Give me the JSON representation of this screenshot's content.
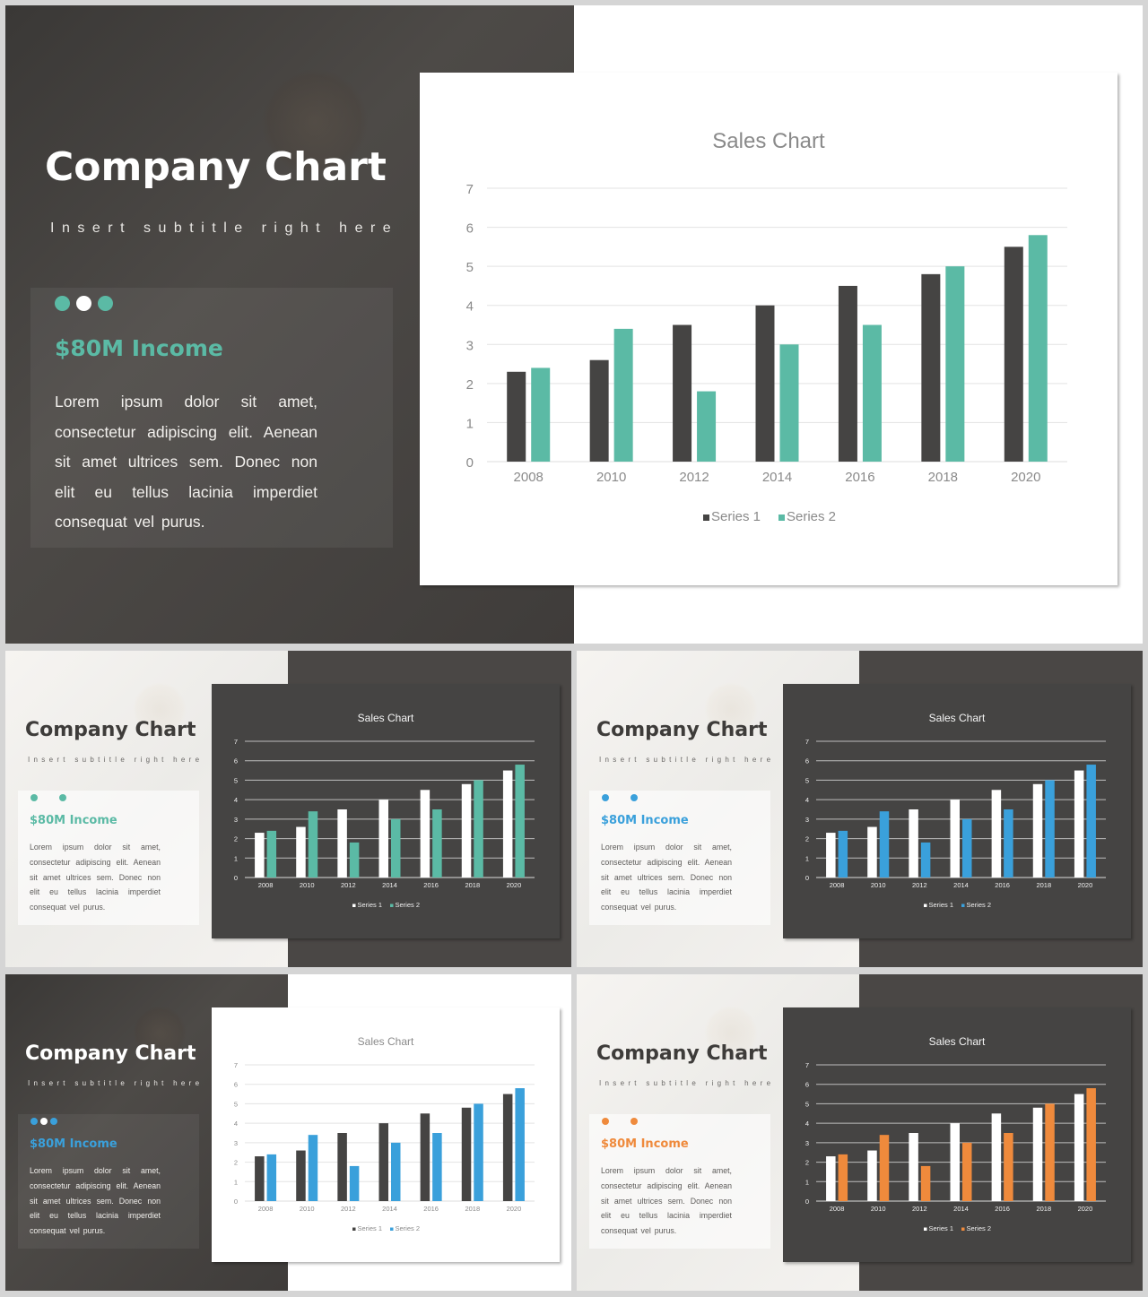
{
  "slides": [
    {
      "id": "main",
      "variant": "dark-left-white-chart",
      "title": "Company Chart",
      "subtitle": "Insert subtitle right here",
      "income": "$80M Income",
      "body": "Lorem ipsum dolor sit amet, consectetur adipiscing elit. Aenean sit amet ultrices sem. Donec non elit eu tellus lacinia imperdiet consequat vel purus.",
      "accent": "#5bbaa5"
    },
    {
      "id": "teal-dark",
      "variant": "light-left-dark-chart",
      "title": "Company Chart",
      "subtitle": "Insert subtitle right here",
      "income": "$80M Income",
      "body": "Lorem ipsum dolor sit amet, consectetur adipiscing elit. Aenean sit amet ultrices sem. Donec non elit eu tellus lacinia imperdiet consequat vel purus.",
      "accent": "#5bbaa5"
    },
    {
      "id": "blue-dark",
      "variant": "light-left-dark-chart",
      "title": "Company Chart",
      "subtitle": "Insert subtitle right here",
      "income": "$80M Income",
      "body": "Lorem ipsum dolor sit amet, consectetur adipiscing elit. Aenean sit amet ultrices sem. Donec non elit eu tellus lacinia imperdiet consequat vel purus.",
      "accent": "#3aa0db"
    },
    {
      "id": "blue-white",
      "variant": "dark-left-white-chart",
      "title": "Company Chart",
      "subtitle": "Insert subtitle right here",
      "income": "$80M Income",
      "body": "Lorem ipsum dolor sit amet, consectetur adipiscing elit. Aenean sit amet ultrices sem. Donec non elit eu tellus lacinia imperdiet consequat vel purus.",
      "accent": "#3aa0db"
    },
    {
      "id": "orange-dark",
      "variant": "light-left-dark-chart",
      "title": "Company Chart",
      "subtitle": "Insert subtitle right here",
      "income": "$80M Income",
      "body": "Lorem ipsum dolor sit amet, consectetur adipiscing elit. Aenean sit amet ultrices sem. Donec non elit eu tellus lacinia imperdiet consequat vel purus.",
      "accent": "#ef8a3c"
    }
  ],
  "chart_data": {
    "type": "bar",
    "title": "Sales Chart",
    "categories": [
      "2008",
      "2010",
      "2012",
      "2014",
      "2016",
      "2018",
      "2020"
    ],
    "series": [
      {
        "name": "Series 1",
        "values": [
          2.3,
          2.6,
          3.5,
          4.0,
          4.5,
          4.8,
          5.5
        ]
      },
      {
        "name": "Series 2",
        "values": [
          2.4,
          3.4,
          1.8,
          3.0,
          3.5,
          5.0,
          5.8
        ]
      }
    ],
    "ylim": [
      0,
      7
    ],
    "yticks": [
      "0",
      "1",
      "2",
      "3",
      "4",
      "5",
      "6",
      "7"
    ],
    "grid": true,
    "legend": "bottom"
  }
}
